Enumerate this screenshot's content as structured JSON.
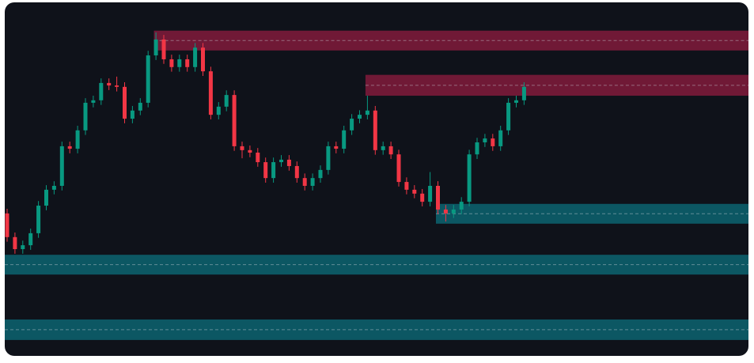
{
  "chart_data": {
    "type": "candlestick",
    "ylim": [
      0,
      100
    ],
    "up_color": "#089981",
    "down_color": "#f23645",
    "open": [
      40.3,
      33.6,
      30.2,
      31.3,
      34.7,
      42.5,
      47.0,
      48.1,
      59.3,
      58.6,
      63.8,
      71.6,
      72.3,
      77.2,
      76.5,
      76.1,
      67.1,
      69.4,
      71.6,
      85.0,
      89.5,
      83.9,
      81.7,
      83.9,
      81.7,
      87.2,
      80.5,
      68.2,
      70.5,
      73.8,
      59.3,
      58.2,
      57.5,
      54.8,
      50.3,
      54.8,
      55.5,
      53.7,
      50.3,
      48.1,
      50.3,
      52.6,
      59.3,
      58.6,
      63.8,
      67.1,
      68.2,
      69.4,
      58.2,
      59.3,
      57.0,
      49.2,
      47.0,
      45.9,
      43.6,
      48.1,
      41.4,
      40.3,
      41.4,
      43.6,
      57.0,
      60.4,
      61.5,
      59.3,
      63.8,
      71.6,
      72.3
    ],
    "high": [
      41.6,
      34.9,
      32.6,
      36.0,
      43.8,
      48.3,
      49.4,
      60.6,
      60.6,
      65.1,
      72.9,
      73.6,
      78.5,
      78.5,
      79.0,
      77.4,
      70.7,
      72.9,
      86.3,
      91.5,
      90.8,
      85.2,
      85.2,
      85.2,
      88.5,
      88.5,
      81.8,
      71.8,
      75.1,
      75.1,
      60.6,
      59.5,
      58.8,
      56.1,
      56.1,
      56.8,
      56.8,
      55.0,
      51.6,
      51.6,
      53.9,
      60.6,
      60.6,
      65.1,
      68.4,
      69.5,
      73.6,
      70.7,
      60.6,
      60.6,
      58.3,
      50.5,
      48.3,
      47.2,
      52.0,
      49.4,
      42.7,
      42.7,
      44.9,
      58.3,
      61.7,
      62.8,
      62.8,
      65.1,
      72.9,
      73.6,
      77.4
    ],
    "low": [
      32.3,
      28.9,
      28.9,
      30.0,
      33.4,
      41.2,
      45.7,
      46.8,
      57.3,
      57.3,
      62.5,
      70.3,
      71.0,
      75.2,
      74.8,
      65.8,
      65.8,
      68.1,
      70.3,
      83.7,
      82.6,
      80.4,
      80.4,
      80.4,
      80.4,
      79.2,
      66.9,
      66.9,
      69.2,
      58.0,
      55.9,
      56.2,
      53.5,
      49.0,
      49.0,
      53.5,
      52.4,
      49.0,
      46.8,
      46.8,
      49.0,
      51.3,
      57.3,
      57.3,
      62.5,
      65.8,
      66.9,
      56.9,
      56.9,
      55.7,
      47.9,
      45.7,
      44.6,
      42.3,
      42.3,
      40.1,
      38.0,
      39.0,
      40.1,
      42.3,
      55.7,
      59.1,
      58.0,
      58.0,
      62.5,
      70.3,
      71.0
    ],
    "close": [
      33.6,
      30.2,
      31.3,
      34.7,
      42.5,
      47.0,
      48.1,
      59.3,
      58.6,
      63.8,
      71.6,
      72.3,
      77.2,
      76.5,
      76.1,
      67.1,
      69.4,
      71.6,
      85.0,
      89.5,
      83.9,
      81.7,
      83.9,
      81.7,
      87.2,
      80.5,
      68.2,
      70.5,
      73.8,
      59.3,
      58.2,
      57.5,
      54.8,
      50.3,
      54.8,
      55.5,
      53.7,
      50.3,
      48.1,
      50.3,
      52.6,
      59.3,
      58.6,
      63.8,
      67.1,
      68.2,
      69.4,
      58.2,
      59.3,
      57.0,
      49.2,
      47.0,
      45.9,
      43.6,
      48.1,
      41.4,
      40.3,
      41.4,
      43.6,
      57.0,
      60.4,
      61.5,
      59.3,
      63.8,
      71.6,
      72.3,
      76.1
    ],
    "zones": [
      {
        "start": 19,
        "top": 92,
        "bottom": 86.4,
        "color": "#7b1b3a"
      },
      {
        "start": 46,
        "top": 79.5,
        "bottom": 73.6,
        "color": "#7b1b3a"
      },
      {
        "start": 55,
        "top": 43,
        "bottom": 37.4,
        "color": "#0c5f6b"
      },
      {
        "start": 0,
        "top": 28.6,
        "bottom": 23,
        "color": "#0c5f6b"
      },
      {
        "start": 0,
        "top": 10.3,
        "bottom": 4.5,
        "color": "#0c5f6b"
      }
    ]
  }
}
